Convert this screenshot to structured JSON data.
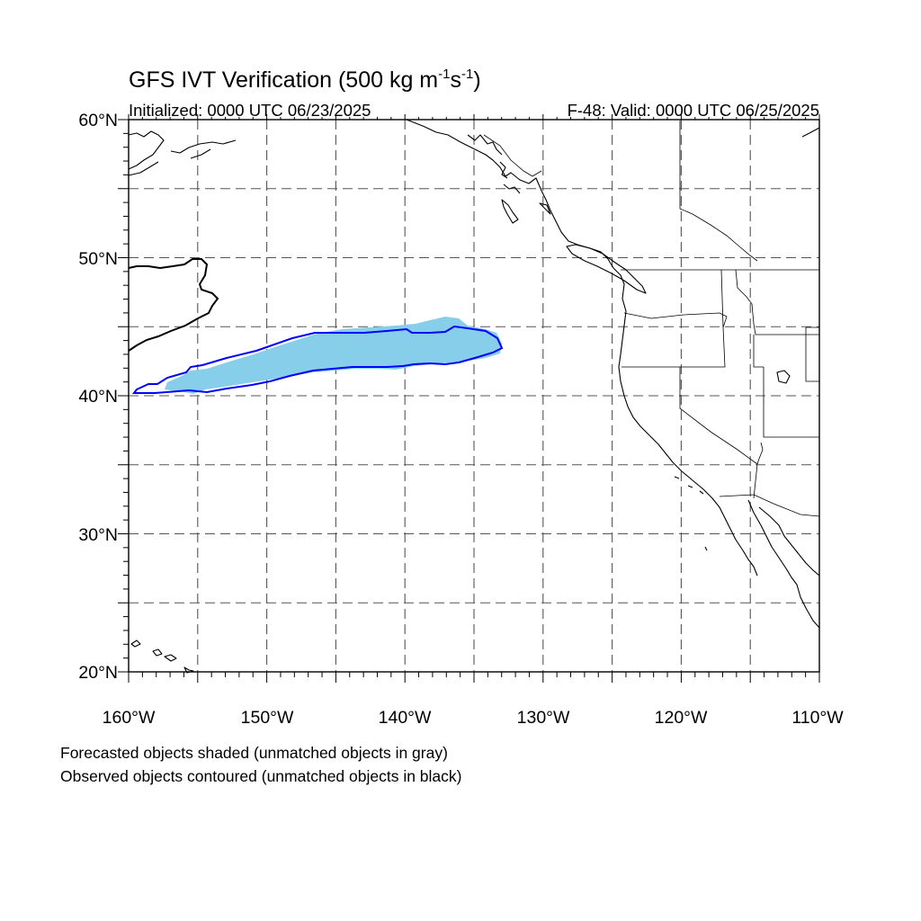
{
  "title": {
    "main": "GFS IVT Verification (500 kg m",
    "exp1": "-1",
    "mid": "s",
    "exp2": "-1",
    "close": ")"
  },
  "subtitle": {
    "initialized": "Initialized: 0000 UTC 06/23/2025",
    "valid": "F-48: Valid: 0000 UTC 06/25/2025"
  },
  "map": {
    "lon_range": [
      -160,
      -110
    ],
    "lat_range": [
      20,
      60
    ],
    "grid": "on",
    "lat_labels": [
      "20°N",
      "30°N",
      "40°N",
      "50°N",
      "60°N"
    ],
    "lon_labels": [
      "160°W",
      "150°W",
      "140°W",
      "130°W",
      "120°W",
      "110°W"
    ]
  },
  "objects": {
    "forecast_fill_color": "#87ceeb",
    "observed_contour_color": "#0000ff",
    "coastline_color": "#000000"
  },
  "notes": {
    "line1": "Forecasted objects shaded (unmatched objects in gray)",
    "line2": "Observed objects contoured (unmatched objects in black)"
  }
}
